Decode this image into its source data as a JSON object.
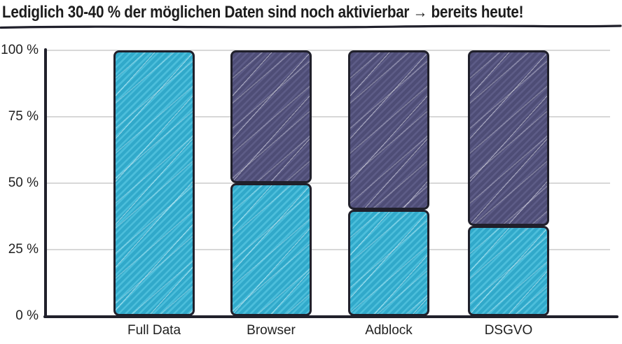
{
  "title": "Lediglich 30-40 % der möglichen Daten sind noch aktivierbar → bereits heute!",
  "colors": {
    "bar_cyan": "#31A9CA",
    "bar_cyan_light": "#4CBEDB",
    "bar_purple": "#4E4D76",
    "bar_purple_light": "#5D5C87",
    "outline": "#20202B",
    "gridline": "#D8D8D8",
    "text": "#1C1C1C",
    "background": "#FFFFFF"
  },
  "chart_data": {
    "type": "bar",
    "stacked": true,
    "title": "Lediglich 30-40 % der möglichen Daten sind noch aktivierbar → bereits heute!",
    "categories": [
      "Full Data",
      "Browser",
      "Adblock",
      "DSGVO"
    ],
    "series": [
      {
        "id": "activatable-share",
        "color": "#31A9CA",
        "color_light": "#4CBEDB",
        "values": [
          100,
          50,
          40,
          34
        ]
      },
      {
        "id": "remainder-share",
        "color": "#4E4D76",
        "color_light": "#5D5C87",
        "values": [
          0,
          50,
          60,
          66
        ]
      }
    ],
    "xlabel": "",
    "ylabel": "",
    "ylim": [
      0,
      100
    ],
    "grid": true,
    "legend": "none",
    "yticks": [
      {
        "value": 0,
        "label": "0 %"
      },
      {
        "value": 25,
        "label": "25 %"
      },
      {
        "value": 50,
        "label": "50 %"
      },
      {
        "value": 75,
        "label": "75 %"
      },
      {
        "value": 100,
        "label": "100 %"
      }
    ]
  }
}
